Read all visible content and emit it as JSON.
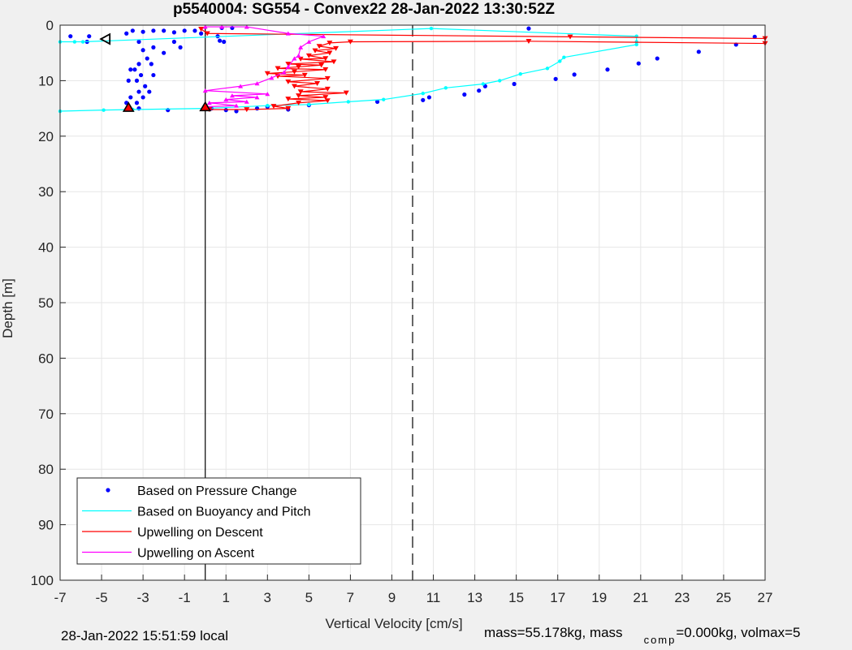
{
  "chart_data": {
    "type": "scatter",
    "title": "p5540004: SG554 - Convex22 28-Jan-2022 13:30:52Z",
    "xlabel": "Vertical Velocity [cm/s]",
    "ylabel": "Depth [m]",
    "xlim": [
      -7,
      27
    ],
    "ylim": [
      0,
      100
    ],
    "y_reversed": true,
    "grid": true,
    "legend_placement": "bottom-left",
    "xticks": [
      -7,
      -5,
      -3,
      -1,
      1,
      3,
      5,
      7,
      9,
      11,
      13,
      15,
      17,
      19,
      21,
      23,
      25,
      27
    ],
    "yticks": [
      0,
      10,
      20,
      30,
      40,
      50,
      60,
      70,
      80,
      90,
      100
    ],
    "reference_lines": [
      {
        "x": 0,
        "style": "solid",
        "color": "#000000"
      },
      {
        "x": 10,
        "style": "dashed",
        "color": "#000000"
      }
    ],
    "legend": [
      {
        "label": "Based on Pressure Change",
        "color": "#0000ff",
        "marker": "dot"
      },
      {
        "label": "Based on Buoyancy and Pitch",
        "color": "#00ffff",
        "marker": "line"
      },
      {
        "label": "Upwelling on Descent",
        "color": "#ff0000",
        "marker": "line"
      },
      {
        "label": "Upwelling on Ascent",
        "color": "#ff00ff",
        "marker": "line"
      }
    ],
    "series": [
      {
        "name": "Based on Pressure Change",
        "color": "#0000ff",
        "kind": "dots",
        "points": [
          [
            -6.5,
            2
          ],
          [
            -5.6,
            2
          ],
          [
            -5.7,
            3
          ],
          [
            -3.8,
            1.5
          ],
          [
            -3.5,
            1
          ],
          [
            -3.0,
            1.2
          ],
          [
            -2.5,
            1
          ],
          [
            -2.0,
            1
          ],
          [
            -1.5,
            1.3
          ],
          [
            -1.0,
            1
          ],
          [
            -0.5,
            1
          ],
          [
            -0.2,
            1.5
          ],
          [
            0.8,
            0.5
          ],
          [
            1.3,
            0.5
          ],
          [
            -3.2,
            3
          ],
          [
            -3.0,
            4.5
          ],
          [
            -2.8,
            6
          ],
          [
            -2.5,
            4
          ],
          [
            -2.0,
            5
          ],
          [
            -1.5,
            3
          ],
          [
            -1.2,
            4
          ],
          [
            -3.2,
            7
          ],
          [
            -3.4,
            8
          ],
          [
            -3.1,
            9
          ],
          [
            -3.3,
            10
          ],
          [
            -2.9,
            11
          ],
          [
            -3.2,
            12
          ],
          [
            -3.0,
            13
          ],
          [
            -3.3,
            14
          ],
          [
            -3.6,
            8
          ],
          [
            -3.7,
            10
          ],
          [
            -2.6,
            7
          ],
          [
            -2.5,
            9
          ],
          [
            -3.6,
            13
          ],
          [
            -3.2,
            15
          ],
          [
            -3.8,
            14
          ],
          [
            -2.7,
            12
          ],
          [
            -1.8,
            15.3
          ],
          [
            0.3,
            15
          ],
          [
            1.0,
            15.3
          ],
          [
            1.5,
            15.5
          ],
          [
            2.5,
            15
          ],
          [
            3.0,
            14.7
          ],
          [
            4.0,
            15.2
          ],
          [
            5.0,
            14.4
          ],
          [
            8.3,
            13.8
          ],
          [
            10.5,
            13.5
          ],
          [
            10.8,
            13
          ],
          [
            12.5,
            12.5
          ],
          [
            13.2,
            11.8
          ],
          [
            13.5,
            11
          ],
          [
            14.9,
            10.6
          ],
          [
            16.9,
            9.7
          ],
          [
            17.8,
            8.9
          ],
          [
            19.4,
            8.0
          ],
          [
            20.9,
            6.9
          ],
          [
            21.8,
            6
          ],
          [
            23.8,
            4.8
          ],
          [
            25.6,
            3.5
          ],
          [
            26.5,
            2.1
          ],
          [
            15.6,
            0.6
          ],
          [
            0.7,
            2.8
          ],
          [
            0.9,
            3.0
          ],
          [
            0.6,
            2.0
          ]
        ]
      },
      {
        "name": "Based on Buoyancy and Pitch",
        "color": "#00ffff",
        "kind": "line",
        "points": [
          [
            -7,
            3
          ],
          [
            -6.3,
            3
          ],
          [
            -5.9,
            3
          ],
          [
            10.9,
            0.6
          ],
          [
            20.8,
            2
          ],
          [
            20.8,
            3
          ],
          [
            20.8,
            3.5
          ],
          [
            17.3,
            5.8
          ],
          [
            17.1,
            6.5
          ],
          [
            16.5,
            7.8
          ],
          [
            15.2,
            8.8
          ],
          [
            14.2,
            10
          ],
          [
            13.4,
            10.6
          ],
          [
            11.6,
            11.3
          ],
          [
            10.5,
            12.3
          ],
          [
            8.6,
            13.4
          ],
          [
            6.9,
            13.8
          ],
          [
            5.0,
            14.3
          ],
          [
            3.0,
            14.5
          ],
          [
            0.0,
            15
          ],
          [
            -3.5,
            15.2
          ],
          [
            -4.9,
            15.3
          ],
          [
            -7,
            15.5
          ]
        ]
      },
      {
        "name": "Upwelling on Descent",
        "color": "#ff0000",
        "kind": "line-markers",
        "marker": "triangle-down",
        "points": [
          [
            -0.2,
            0.7
          ],
          [
            0.1,
            1.5
          ],
          [
            17.6,
            2.1
          ],
          [
            27,
            2.4
          ],
          [
            27,
            3.3
          ],
          [
            15.6,
            2.9
          ],
          [
            7,
            3.0
          ],
          [
            6.0,
            3.2
          ],
          [
            5.5,
            3.8
          ],
          [
            6.3,
            4.2
          ],
          [
            5.3,
            4.6
          ],
          [
            6.0,
            5.0
          ],
          [
            5.0,
            5.5
          ],
          [
            5.8,
            6.0
          ],
          [
            4.6,
            6.1
          ],
          [
            6.2,
            6.6
          ],
          [
            4.0,
            7.0
          ],
          [
            5.6,
            7.2
          ],
          [
            4.5,
            7.5
          ],
          [
            3.5,
            7.8
          ],
          [
            5.8,
            8.0
          ],
          [
            4.3,
            8.4
          ],
          [
            3.0,
            8.7
          ],
          [
            4.8,
            9.0
          ],
          [
            3.5,
            9.2
          ],
          [
            5.9,
            9.6
          ],
          [
            4.0,
            10.2
          ],
          [
            5.4,
            10.5
          ],
          [
            4.3,
            11.0
          ],
          [
            5.9,
            11.5
          ],
          [
            4.6,
            12.0
          ],
          [
            6.8,
            12.2
          ],
          [
            4.5,
            12.7
          ],
          [
            5.8,
            13.0
          ],
          [
            4.0,
            13.3
          ],
          [
            5.9,
            13.6
          ],
          [
            4.5,
            14.0
          ],
          [
            3.3,
            14.6
          ],
          [
            4.0,
            15.0
          ],
          [
            2.0,
            15.2
          ],
          [
            0.2,
            15.2
          ]
        ]
      },
      {
        "name": "Upwelling on Ascent",
        "color": "#ff00ff",
        "kind": "line-markers",
        "marker": "triangle-up",
        "points": [
          [
            0.0,
            14.7
          ],
          [
            1.5,
            14.5
          ],
          [
            0.2,
            14.0
          ],
          [
            2.0,
            13.8
          ],
          [
            1.0,
            13.4
          ],
          [
            2.5,
            13.0
          ],
          [
            1.3,
            12.7
          ],
          [
            3.0,
            12.4
          ],
          [
            0.0,
            11.8
          ],
          [
            1.7,
            11.0
          ],
          [
            2.5,
            10.5
          ],
          [
            3.2,
            9.5
          ],
          [
            3.8,
            8.5
          ],
          [
            4.0,
            7.5
          ],
          [
            4.3,
            6.0
          ],
          [
            4.5,
            5.5
          ],
          [
            4.6,
            4.0
          ],
          [
            5.0,
            3.0
          ],
          [
            5.7,
            2.0
          ],
          [
            4.0,
            1.5
          ],
          [
            2.0,
            0.3
          ],
          [
            0.8,
            0.3
          ],
          [
            0.0,
            0.3
          ]
        ]
      },
      {
        "name": "",
        "color": "#ff0000",
        "kind": "markers",
        "marker": "triangle-up",
        "points": [
          [
            -3.7,
            14.8
          ],
          [
            0.0,
            14.7
          ]
        ]
      }
    ]
  },
  "footer": {
    "local_time": "28-Jan-2022 15:51:59 local",
    "mass_text": "mass=55.178kg, mass",
    "comp_subscript": "comp",
    "comp_text": "=0.000kg, volmax=5"
  }
}
